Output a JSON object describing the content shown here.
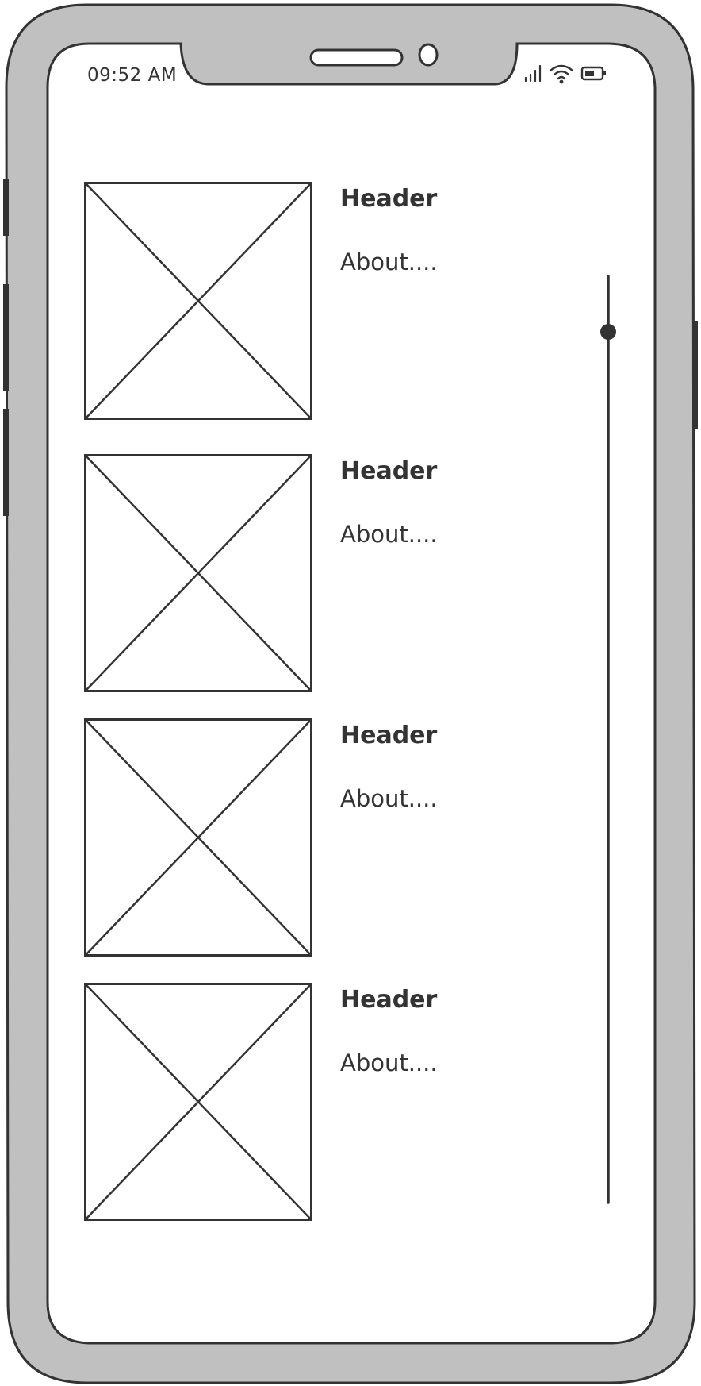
{
  "status_bar": {
    "time": "09:52 AM",
    "icons": [
      "cellular-signal-icon",
      "wifi-icon",
      "battery-icon"
    ]
  },
  "list": {
    "items": [
      {
        "header": "Header",
        "about": "About....",
        "image": "image-placeholder-icon"
      },
      {
        "header": "Header",
        "about": "About....",
        "image": "image-placeholder-icon"
      },
      {
        "header": "Header",
        "about": "About....",
        "image": "image-placeholder-icon"
      },
      {
        "header": "Header",
        "about": "About....",
        "image": "image-placeholder-icon"
      }
    ]
  },
  "scrollbar": {
    "position": 0.06
  },
  "colors": {
    "device_frame": "#c0c0c0",
    "stroke": "#333333",
    "screen": "#ffffff"
  }
}
